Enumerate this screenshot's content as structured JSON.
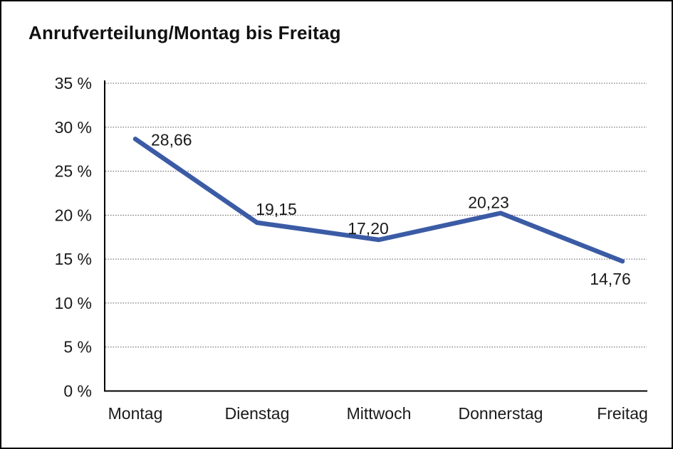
{
  "page": {
    "title": "Anrufverteilung/Montag bis Freitag"
  },
  "chart_data": {
    "type": "line",
    "title": "Anrufverteilung/Montag bis Freitag",
    "categories": [
      "Montag",
      "Dienstag",
      "Mittwoch",
      "Donnerstag",
      "Freitag"
    ],
    "values": [
      28.66,
      19.15,
      17.2,
      20.23,
      14.76
    ],
    "point_labels": [
      "28,66",
      "19,15",
      "17,20",
      "20,23",
      "14,76"
    ],
    "xlabel": "",
    "ylabel": "",
    "ylim": [
      0,
      35
    ],
    "ytick_step": 5,
    "ytick_labels": [
      "0 %",
      "5 %",
      "10 %",
      "15 %",
      "20 %",
      "25 %",
      "30 %",
      "35 %"
    ],
    "grid": "horizontal-dotted",
    "legend": "none",
    "colors": {
      "line": "#3B5BA5",
      "axis": "#000000",
      "gridline": "#555555",
      "text": "#1a1a1a"
    }
  }
}
